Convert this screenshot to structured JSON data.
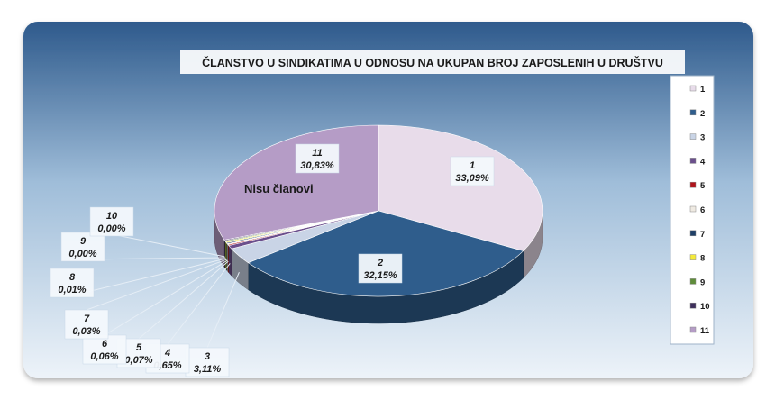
{
  "chart_data": {
    "type": "pie",
    "title": "ČLANSTVO U SINDIKATIMA U  ODNOSU NA UKUPAN BROJ ZAPOSLENIH  U DRUŠTVU",
    "annotation": "Nisu članovi",
    "legend_position": "right",
    "slices": [
      {
        "name": "1",
        "value": 33.09,
        "label": "33,09%",
        "color": "#e8dcea"
      },
      {
        "name": "2",
        "value": 32.15,
        "label": "32,15%",
        "color": "#2f5d8c"
      },
      {
        "name": "3",
        "value": 3.11,
        "label": "3,11%",
        "color": "#c9d4e6"
      },
      {
        "name": "4",
        "value": 0.65,
        "label": "0,65%",
        "color": "#6b4f8c"
      },
      {
        "name": "5",
        "value": 0.07,
        "label": "0,07%",
        "color": "#b0141c"
      },
      {
        "name": "6",
        "value": 0.06,
        "label": "0,06%",
        "color": "#efeae2"
      },
      {
        "name": "7",
        "value": 0.03,
        "label": "0,03%",
        "color": "#1f3f66"
      },
      {
        "name": "8",
        "value": 0.01,
        "label": "0,01%",
        "color": "#f4ea3a"
      },
      {
        "name": "9",
        "value": 0.0,
        "label": "0,00%",
        "color": "#5f8c3a"
      },
      {
        "name": "10",
        "value": 0.0,
        "label": "0,00%",
        "color": "#3e2f5c"
      },
      {
        "name": "11",
        "value": 30.83,
        "label": "30,83%",
        "color": "#b59cc6"
      }
    ]
  }
}
